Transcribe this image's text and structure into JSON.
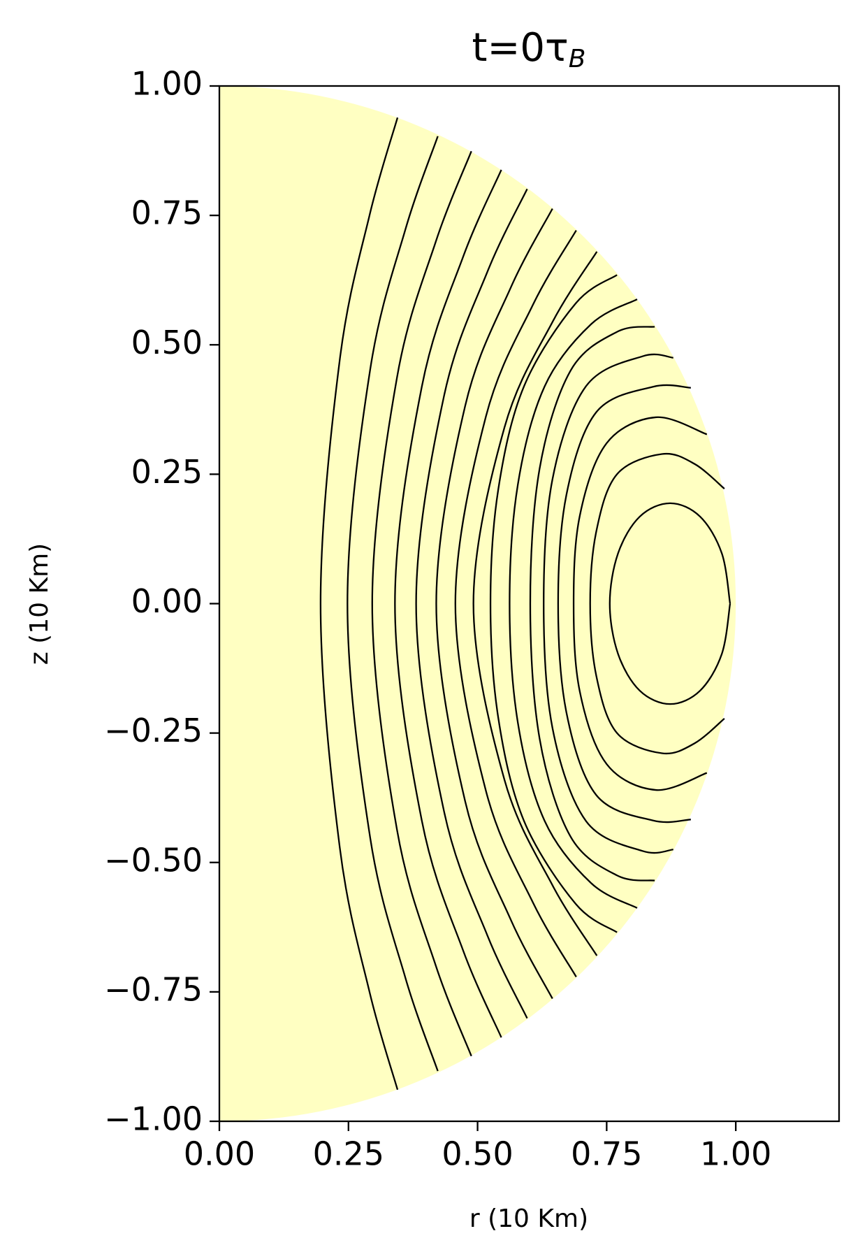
{
  "chart_data": {
    "type": "contour",
    "title": "t=0τ",
    "title_subscript": "B",
    "x_label": "r (10 Km)",
    "y_label": "z (10 Km)",
    "xlim": [
      0,
      1.2
    ],
    "ylim": [
      -1,
      1
    ],
    "xticks": [
      {
        "value": 0,
        "label": "0.00"
      },
      {
        "value": 0.25,
        "label": "0.25"
      },
      {
        "value": 0.5,
        "label": "0.50"
      },
      {
        "value": 0.75,
        "label": "0.75"
      },
      {
        "value": 1,
        "label": "1.00"
      }
    ],
    "yticks": [
      {
        "value": -1,
        "label": "−1.00"
      },
      {
        "value": -0.75,
        "label": "−0.75"
      },
      {
        "value": -0.5,
        "label": "−0.50"
      },
      {
        "value": -0.25,
        "label": "−0.25"
      },
      {
        "value": 0,
        "label": "0.00"
      },
      {
        "value": 0.25,
        "label": "0.25"
      },
      {
        "value": 0.5,
        "label": "0.50"
      },
      {
        "value": 0.75,
        "label": "0.75"
      },
      {
        "value": 1,
        "label": "1.00"
      }
    ],
    "star_radius": 1,
    "star_color": "#ffffc2",
    "line_color": "#000000",
    "series": [
      {
        "x": [
          0.345,
          0.291,
          0.233,
          0.196,
          0.233,
          0.291,
          0.345
        ],
        "values": [
          0.939,
          0.751,
          0.47,
          0,
          -0.47,
          -0.751,
          -0.939
        ]
      },
      {
        "x": [
          0.423,
          0.36,
          0.292,
          0.248,
          0.292,
          0.36,
          0.423
        ],
        "values": [
          0.903,
          0.722,
          0.452,
          0,
          -0.452,
          -0.722,
          -0.903
        ]
      },
      {
        "x": [
          0.488,
          0.419,
          0.344,
          0.296,
          0.344,
          0.419,
          0.488
        ],
        "values": [
          0.874,
          0.699,
          0.437,
          0,
          -0.437,
          -0.699,
          -0.874
        ]
      },
      {
        "x": [
          0.546,
          0.472,
          0.392,
          0.34,
          0.392,
          0.472,
          0.546
        ],
        "values": [
          0.838,
          0.67,
          0.419,
          0,
          -0.419,
          -0.67,
          -0.838
        ]
      },
      {
        "x": [
          0.596,
          0.519,
          0.435,
          0.381,
          0.435,
          0.519,
          0.596
        ],
        "values": [
          0.801,
          0.641,
          0.401,
          0,
          -0.401,
          -0.641,
          -0.801
        ]
      },
      {
        "x": [
          0.645,
          0.564,
          0.476,
          0.42,
          0.476,
          0.564,
          0.645
        ],
        "values": [
          0.763,
          0.61,
          0.382,
          0,
          -0.382,
          -0.61,
          -0.763
        ]
      },
      {
        "x": [
          0.691,
          0.607,
          0.516,
          0.457,
          0.516,
          0.607,
          0.691
        ],
        "values": [
          0.721,
          0.577,
          0.361,
          0,
          -0.361,
          -0.577,
          -0.721
        ]
      },
      {
        "x": [
          0.731,
          0.645,
          0.552,
          0.492,
          0.552,
          0.645,
          0.731
        ],
        "values": [
          0.68,
          0.544,
          0.34,
          0,
          -0.34,
          -0.544,
          -0.68
        ]
      },
      {
        "x": [
          0.77,
          0.69,
          0.59,
          0.54,
          0.525,
          0.54,
          0.59,
          0.69,
          0.77
        ],
        "values": [
          0.635,
          0.58,
          0.42,
          0.22,
          0,
          -0.22,
          -0.42,
          -0.58,
          -0.635
        ]
      },
      {
        "x": [
          0.809,
          0.72,
          0.63,
          0.578,
          0.562,
          0.578,
          0.63,
          0.72,
          0.809
        ],
        "values": [
          0.588,
          0.54,
          0.42,
          0.23,
          0,
          -0.23,
          -0.42,
          -0.54,
          -0.588
        ]
      },
      {
        "x": [
          0.843,
          0.77,
          0.68,
          0.62,
          0.602,
          0.62,
          0.68,
          0.77,
          0.843
        ],
        "values": [
          0.535,
          0.525,
          0.45,
          0.26,
          0,
          -0.26,
          -0.45,
          -0.525,
          -0.535
        ]
      },
      {
        "x": [
          0.879,
          0.82,
          0.71,
          0.645,
          0.628,
          0.645,
          0.71,
          0.82,
          0.879
        ],
        "values": [
          0.475,
          0.478,
          0.42,
          0.24,
          0,
          -0.24,
          -0.42,
          -0.478,
          -0.475
        ]
      },
      {
        "x": [
          0.913,
          0.84,
          0.73,
          0.672,
          0.656,
          0.672,
          0.73,
          0.84,
          0.913
        ],
        "values": [
          0.417,
          0.419,
          0.37,
          0.21,
          0,
          -0.21,
          -0.37,
          -0.419,
          -0.417
        ]
      },
      {
        "x": [
          0.944,
          0.845,
          0.75,
          0.698,
          0.686,
          0.698,
          0.75,
          0.845,
          0.944
        ],
        "values": [
          0.327,
          0.36,
          0.31,
          0.17,
          0,
          -0.17,
          -0.31,
          -0.36,
          -0.327
        ]
      },
      {
        "x": [
          0.978,
          0.92,
          0.857,
          0.77,
          0.73,
          0.718,
          0.73,
          0.77,
          0.857,
          0.92,
          0.978
        ],
        "values": [
          0.222,
          0.27,
          0.289,
          0.25,
          0.14,
          0,
          -0.14,
          -0.25,
          -0.289,
          -0.27,
          -0.222
        ]
      },
      {
        "x": [
          0.989,
          0.973,
          0.931,
          0.873,
          0.814,
          0.772,
          0.756,
          0.772,
          0.814,
          0.873,
          0.931,
          0.973,
          0.989
        ],
        "values": [
          0,
          0.097,
          0.168,
          0.194,
          0.168,
          0.097,
          0,
          -0.097,
          -0.168,
          -0.194,
          -0.168,
          -0.097,
          0
        ]
      }
    ]
  }
}
